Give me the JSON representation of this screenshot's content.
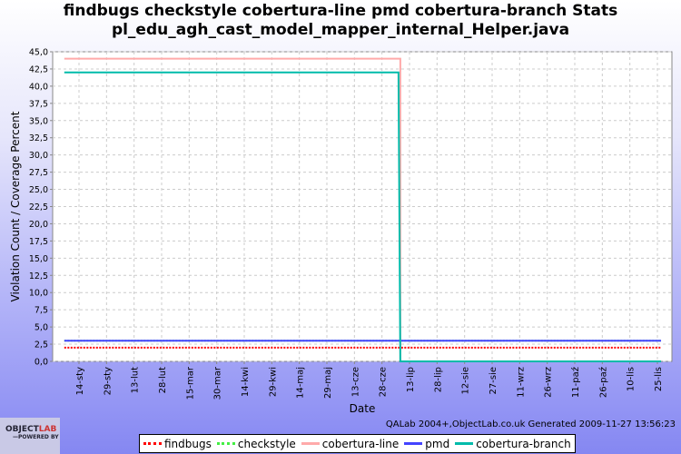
{
  "title_line1": "findbugs checkstyle cobertura-line pmd cobertura-branch  Stats",
  "title_line2": "pl_edu_agh_cast_model_mapper_internal_Helper.java",
  "footer": "QALab 2004+,ObjectLab.co.uk Generated 2009-11-27 13:56:23",
  "logo_text": "OBJECTLAB",
  "logo_sub": "POWERED BY",
  "chart_data": {
    "type": "line",
    "title": "findbugs checkstyle cobertura-line pmd cobertura-branch  Stats pl_edu_agh_cast_model_mapper_internal_Helper.java",
    "xlabel": "Date",
    "ylabel": "Violation Count / Coverage Percent",
    "ylim": [
      0,
      45
    ],
    "y_ticks": [
      "0,0",
      "2,5",
      "5,0",
      "7,5",
      "10,0",
      "12,5",
      "15,0",
      "17,5",
      "20,0",
      "22,5",
      "25,0",
      "27,5",
      "30,0",
      "32,5",
      "35,0",
      "37,5",
      "40,0",
      "42,5",
      "45,0"
    ],
    "x_ticks": [
      "14-sty",
      "29-sty",
      "13-lut",
      "28-lut",
      "15-mar",
      "30-mar",
      "14-kwi",
      "29-kwi",
      "14-maj",
      "29-maj",
      "13-cze",
      "28-cze",
      "13-lip",
      "28-lip",
      "12-sie",
      "27-sie",
      "11-wrz",
      "26-wrz",
      "11-paź",
      "26-paź",
      "10-lis",
      "25-lis"
    ],
    "x_range": [
      "2009-01-06",
      "2009-11-27"
    ],
    "grid": true,
    "legend": "bottom",
    "series": [
      {
        "name": "findbugs",
        "color": "#ff0000",
        "style": "dotted",
        "points": [
          [
            "2009-01-06",
            2
          ],
          [
            "2009-11-27",
            2
          ]
        ]
      },
      {
        "name": "checkstyle",
        "color": "#44ee44",
        "style": "dotted",
        "points": [
          [
            "2009-01-06",
            3
          ],
          [
            "2009-11-27",
            3
          ]
        ]
      },
      {
        "name": "cobertura-line",
        "color": "#ffaaaa",
        "style": "solid",
        "points": [
          [
            "2009-01-06",
            44
          ],
          [
            "2009-07-08",
            44
          ],
          [
            "2009-07-08",
            0
          ],
          [
            "2009-11-27",
            0
          ]
        ]
      },
      {
        "name": "pmd",
        "color": "#4444ff",
        "style": "solid",
        "points": [
          [
            "2009-01-06",
            3
          ],
          [
            "2009-11-27",
            3
          ]
        ]
      },
      {
        "name": "cobertura-branch",
        "color": "#00bbaa",
        "style": "solid",
        "points": [
          [
            "2009-01-06",
            42
          ],
          [
            "2009-07-07",
            42
          ],
          [
            "2009-07-08",
            0
          ],
          [
            "2009-11-27",
            0
          ]
        ]
      }
    ]
  }
}
